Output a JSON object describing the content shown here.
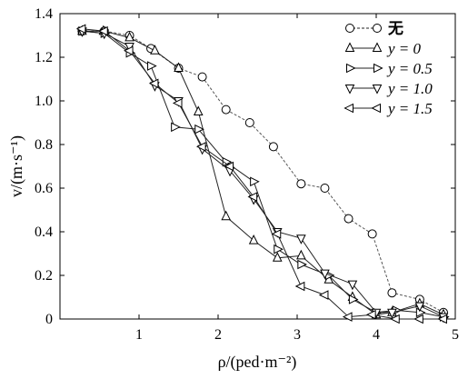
{
  "chart_data": {
    "type": "line",
    "xlabel": "ρ/(ped·m⁻²)",
    "ylabel": "v/(m·s⁻¹)",
    "xlim": [
      0,
      5
    ],
    "ylim": [
      0,
      1.4
    ],
    "xticks": [
      "1",
      "2",
      "3",
      "4",
      "5"
    ],
    "yticks": [
      "0",
      "0.2",
      "0.4",
      "0.6",
      "0.8",
      "1.0",
      "1.2",
      "1.4"
    ],
    "grid": false,
    "legend_position": "top-right",
    "series": [
      {
        "name": "无",
        "marker": "circle",
        "dash": true,
        "x": [
          0.28,
          0.56,
          0.88,
          1.15,
          1.5,
          1.8,
          2.1,
          2.4,
          2.7,
          3.05,
          3.35,
          3.65,
          3.95,
          4.2,
          4.55,
          4.85
        ],
        "y": [
          1.32,
          1.32,
          1.3,
          1.24,
          1.15,
          1.11,
          0.96,
          0.9,
          0.79,
          0.62,
          0.6,
          0.46,
          0.39,
          0.12,
          0.09,
          0.03
        ]
      },
      {
        "name": "y = 0",
        "marker": "triangle-up",
        "dash": false,
        "x": [
          0.28,
          0.55,
          0.88,
          1.2,
          1.5,
          1.75,
          2.1,
          2.45,
          2.75,
          3.05,
          3.4,
          3.7,
          4.0,
          4.2,
          4.55,
          4.85
        ],
        "y": [
          1.32,
          1.32,
          1.29,
          1.23,
          1.15,
          0.95,
          0.47,
          0.36,
          0.28,
          0.29,
          0.18,
          0.1,
          0.02,
          0.03,
          0.07,
          0.02
        ]
      },
      {
        "name": "y = 0.5",
        "marker": "triangle-right",
        "dash": false,
        "x": [
          0.28,
          0.56,
          0.88,
          1.15,
          1.45,
          1.75,
          2.1,
          2.45,
          2.75,
          3.05,
          3.4,
          3.7,
          4.0,
          4.25,
          4.55,
          4.85
        ],
        "y": [
          1.32,
          1.31,
          1.22,
          1.16,
          0.88,
          0.87,
          0.72,
          0.63,
          0.32,
          0.25,
          0.2,
          0.09,
          0.03,
          0.04,
          0.03,
          0.01
        ]
      },
      {
        "name": "y = 1.0",
        "marker": "triangle-down",
        "dash": false,
        "x": [
          0.28,
          0.56,
          0.88,
          1.2,
          1.5,
          1.8,
          2.15,
          2.45,
          2.75,
          3.05,
          3.35,
          3.7,
          4.0,
          4.2,
          4.55,
          4.85
        ],
        "y": [
          1.32,
          1.31,
          1.25,
          1.07,
          1.0,
          0.78,
          0.68,
          0.55,
          0.4,
          0.37,
          0.21,
          0.16,
          0.03,
          0.03,
          0.06,
          0.01
        ]
      },
      {
        "name": "y = 1.5",
        "marker": "triangle-left",
        "dash": false,
        "x": [
          0.28,
          0.56,
          0.88,
          1.2,
          1.5,
          1.8,
          2.15,
          2.45,
          2.75,
          3.05,
          3.35,
          3.65,
          3.95,
          4.25,
          4.55,
          4.85
        ],
        "y": [
          1.33,
          1.32,
          1.23,
          1.08,
          0.99,
          0.79,
          0.7,
          0.56,
          0.39,
          0.15,
          0.11,
          0.01,
          0.02,
          0.0,
          0.0,
          0.0
        ]
      }
    ]
  }
}
